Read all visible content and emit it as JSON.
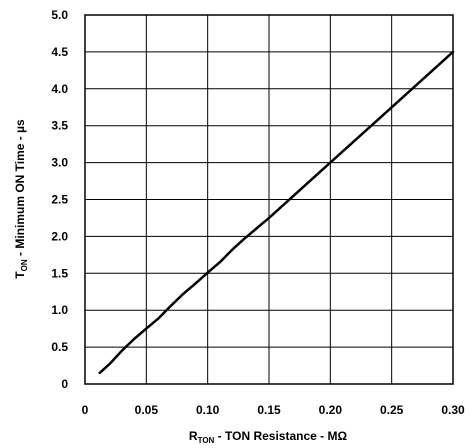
{
  "chart_data": {
    "type": "line",
    "title": "",
    "xlabel": {
      "main": "R",
      "sub": "TON",
      "rest": " - TON Resistance -  MΩ"
    },
    "ylabel": {
      "main": "T",
      "sub": "ON",
      "rest": " - Minimum ON Time - µs"
    },
    "xlim": [
      0,
      0.3
    ],
    "ylim": [
      0,
      5.0
    ],
    "grid": true,
    "x_ticks": [
      "0",
      "0.05",
      "0.10",
      "0.15",
      "0.20",
      "0.25",
      "0.30"
    ],
    "y_ticks": [
      "0",
      "0.5",
      "1.0",
      "1.5",
      "2.0",
      "2.5",
      "3.0",
      "3.5",
      "4.0",
      "4.5",
      "5.0"
    ],
    "series": [
      {
        "color": "#000000",
        "x": [
          0.012,
          0.02,
          0.03,
          0.04,
          0.05,
          0.06,
          0.07,
          0.08,
          0.09,
          0.1,
          0.11,
          0.12,
          0.13,
          0.15,
          0.17,
          0.2,
          0.25,
          0.3
        ],
        "y": [
          0.15,
          0.27,
          0.45,
          0.61,
          0.75,
          0.89,
          1.06,
          1.22,
          1.36,
          1.51,
          1.65,
          1.82,
          1.97,
          2.25,
          2.55,
          3.0,
          3.75,
          4.5
        ]
      }
    ]
  }
}
